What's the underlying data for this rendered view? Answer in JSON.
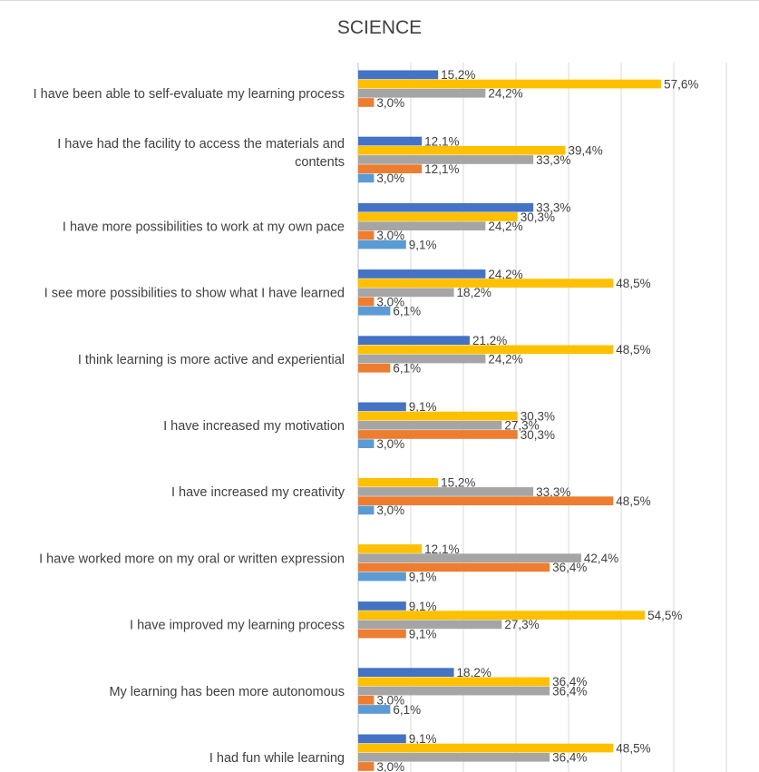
{
  "chart_data": {
    "type": "bar",
    "orientation": "horizontal",
    "title": "SCIENCE",
    "xlim": [
      0,
      70
    ],
    "grid": true,
    "series_colors": [
      "#4472C4",
      "#FFC000",
      "#A5A5A5",
      "#ED7D31",
      "#5B9BD5"
    ],
    "categories": [
      {
        "label": [
          "I have been able to self-evaluate my learning process"
        ],
        "bars": [
          {
            "s": 0,
            "value": 15.2,
            "text": "15,2%"
          },
          {
            "s": 1,
            "value": 57.6,
            "text": "57,6%"
          },
          {
            "s": 2,
            "value": 24.2,
            "text": "24,2%"
          },
          {
            "s": 3,
            "value": 3.0,
            "text": "3,0%"
          }
        ]
      },
      {
        "label": [
          "I have had the facility to access the materials and",
          "contents"
        ],
        "bars": [
          {
            "s": 0,
            "value": 12.1,
            "text": "12,1%"
          },
          {
            "s": 1,
            "value": 39.4,
            "text": "39,4%"
          },
          {
            "s": 2,
            "value": 33.3,
            "text": "33,3%"
          },
          {
            "s": 3,
            "value": 12.1,
            "text": "12,1%"
          },
          {
            "s": 4,
            "value": 3.0,
            "text": "3,0%"
          }
        ]
      },
      {
        "label": [
          "I have more possibilities to work at my own pace"
        ],
        "bars": [
          {
            "s": 0,
            "value": 33.3,
            "text": "33,3%"
          },
          {
            "s": 1,
            "value": 30.3,
            "text": "30,3%"
          },
          {
            "s": 2,
            "value": 24.2,
            "text": "24,2%"
          },
          {
            "s": 3,
            "value": 3.0,
            "text": "3,0%"
          },
          {
            "s": 4,
            "value": 9.1,
            "text": "9,1%"
          }
        ]
      },
      {
        "label": [
          "I see more possibilities to show what I have learned"
        ],
        "bars": [
          {
            "s": 0,
            "value": 24.2,
            "text": "24,2%"
          },
          {
            "s": 1,
            "value": 48.5,
            "text": "48,5%"
          },
          {
            "s": 2,
            "value": 18.2,
            "text": "18,2%"
          },
          {
            "s": 3,
            "value": 3.0,
            "text": "3,0%"
          },
          {
            "s": 4,
            "value": 6.1,
            "text": "6,1%"
          }
        ]
      },
      {
        "label": [
          "I think learning is more active and experiential"
        ],
        "bars": [
          {
            "s": 0,
            "value": 21.2,
            "text": "21,2%"
          },
          {
            "s": 1,
            "value": 48.5,
            "text": "48,5%"
          },
          {
            "s": 2,
            "value": 24.2,
            "text": "24,2%"
          },
          {
            "s": 3,
            "value": 6.1,
            "text": "6,1%"
          }
        ]
      },
      {
        "label": [
          "I have increased my motivation"
        ],
        "bars": [
          {
            "s": 0,
            "value": 9.1,
            "text": "9,1%"
          },
          {
            "s": 1,
            "value": 30.3,
            "text": "30,3%"
          },
          {
            "s": 2,
            "value": 27.3,
            "text": "27,3%"
          },
          {
            "s": 3,
            "value": 30.3,
            "text": "30,3%"
          },
          {
            "s": 4,
            "value": 3.0,
            "text": "3,0%"
          }
        ]
      },
      {
        "label": [
          "I have increased my creativity"
        ],
        "bars": [
          {
            "s": 1,
            "value": 15.2,
            "text": "15,2%"
          },
          {
            "s": 2,
            "value": 33.3,
            "text": "33,3%"
          },
          {
            "s": 3,
            "value": 48.5,
            "text": "48,5%"
          },
          {
            "s": 4,
            "value": 3.0,
            "text": "3,0%"
          }
        ]
      },
      {
        "label": [
          "I have worked more on my oral or written expression"
        ],
        "bars": [
          {
            "s": 1,
            "value": 12.1,
            "text": "12,1%"
          },
          {
            "s": 2,
            "value": 42.4,
            "text": "42,4%"
          },
          {
            "s": 3,
            "value": 36.4,
            "text": "36,4%"
          },
          {
            "s": 4,
            "value": 9.1,
            "text": "9,1%"
          }
        ]
      },
      {
        "label": [
          "I have improved my learning process"
        ],
        "bars": [
          {
            "s": 0,
            "value": 9.1,
            "text": "9,1%"
          },
          {
            "s": 1,
            "value": 54.5,
            "text": "54,5%"
          },
          {
            "s": 2,
            "value": 27.3,
            "text": "27,3%"
          },
          {
            "s": 3,
            "value": 9.1,
            "text": "9,1%"
          }
        ]
      },
      {
        "label": [
          "My learning has been more autonomous"
        ],
        "bars": [
          {
            "s": 0,
            "value": 18.2,
            "text": "18,2%"
          },
          {
            "s": 1,
            "value": 36.4,
            "text": "36,4%"
          },
          {
            "s": 2,
            "value": 36.4,
            "text": "36,4%"
          },
          {
            "s": 3,
            "value": 3.0,
            "text": "3,0%"
          },
          {
            "s": 4,
            "value": 6.1,
            "text": "6,1%"
          }
        ]
      },
      {
        "label": [
          "I had fun while learning"
        ],
        "bars": [
          {
            "s": 0,
            "value": 9.1,
            "text": "9,1%"
          },
          {
            "s": 1,
            "value": 48.5,
            "text": "48,5%"
          },
          {
            "s": 2,
            "value": 36.4,
            "text": "36,4%"
          },
          {
            "s": 3,
            "value": 3.0,
            "text": "3,0%"
          }
        ]
      }
    ]
  }
}
